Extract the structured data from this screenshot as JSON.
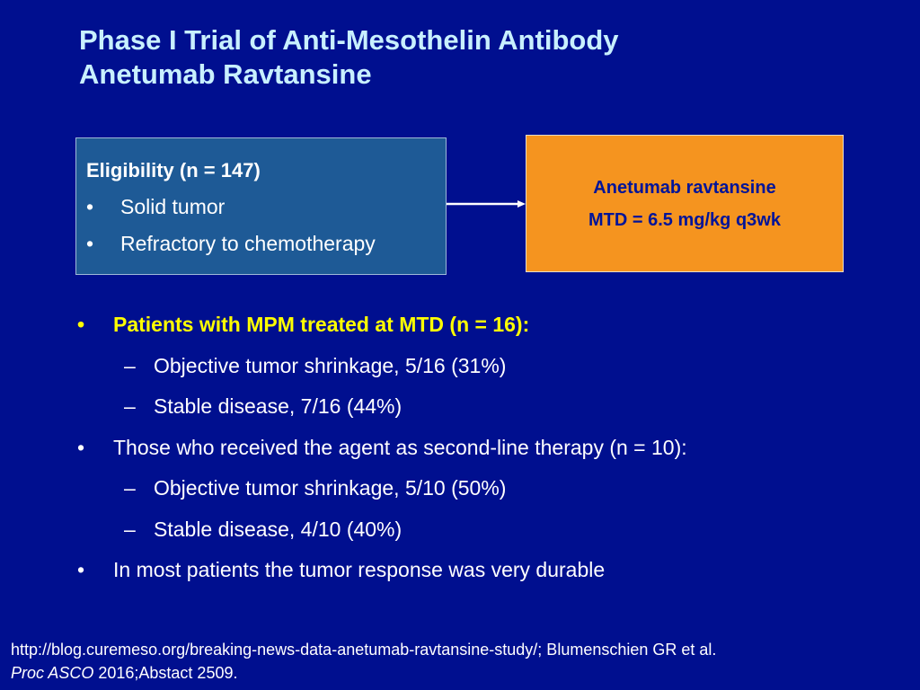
{
  "title": {
    "line1": "Phase I Trial of Anti-Mesothelin Antibody",
    "line2": "Anetumab Ravtansine"
  },
  "eligibility": {
    "heading": "Eligibility (n = 147)",
    "items": [
      "Solid tumor",
      "Refractory to chemotherapy"
    ]
  },
  "agent": {
    "name": "Anetumab ravtansine",
    "dose": "MTD = 6.5 mg/kg q3wk"
  },
  "bullets": {
    "b1": "Patients with MPM treated at MTD (n = 16):",
    "b1_sub1": "Objective tumor shrinkage, 5/16 (31%)",
    "b1_sub2": "Stable disease, 7/16 (44%)",
    "b2": "Those who received the agent as second-line therapy (n = 10):",
    "b2_sub1": "Objective tumor shrinkage, 5/10 (50%)",
    "b2_sub2": "Stable disease, 4/10 (40%)",
    "b3": "In most patients the tumor response was very durable"
  },
  "markers": {
    "bullet": "•",
    "dash": "–"
  },
  "footer": {
    "line1": "http://blog.curemeso.org/breaking-news-data-anetumab-ravtansine-study/; Blumenschien GR et al.",
    "journal": "Proc ASCO",
    "ref": " 2016;Abstact 2509."
  },
  "colors": {
    "background": "#000f8f",
    "title": "#c8f0ff",
    "highlight": "#ffff00",
    "eligibility_box": "#1e5a96",
    "agent_box": "#f5941f",
    "agent_text": "#001499"
  }
}
